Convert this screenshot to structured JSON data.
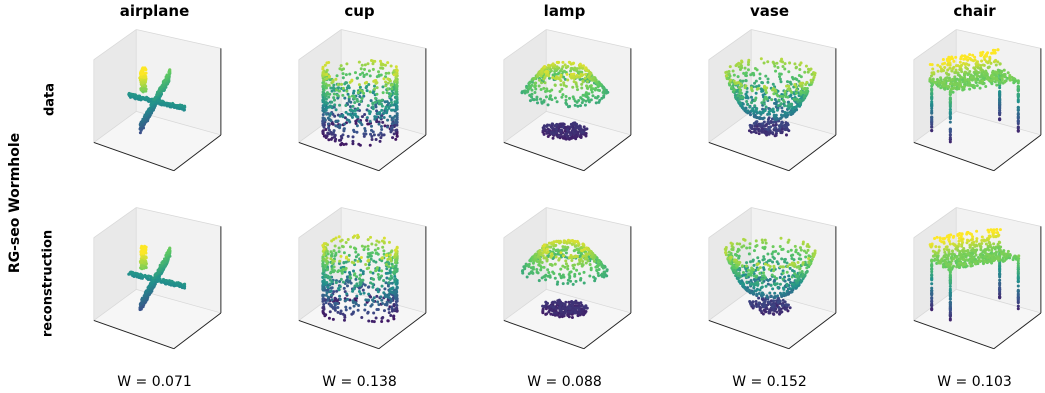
{
  "figure": {
    "side_label": "RG-seo Wormhole",
    "row_labels": [
      "data",
      "reconstruction"
    ],
    "columns": [
      {
        "title": "airplane",
        "score": "W = 0.071",
        "shape": "airplane"
      },
      {
        "title": "cup",
        "score": "W = 0.138",
        "shape": "cup"
      },
      {
        "title": "lamp",
        "score": "W = 0.088",
        "shape": "lamp"
      },
      {
        "title": "vase",
        "score": "W = 0.152",
        "shape": "vase"
      },
      {
        "title": "chair",
        "score": "W = 0.103",
        "shape": "chair"
      }
    ],
    "colormap": [
      "#440154",
      "#3b528b",
      "#21918c",
      "#5ec962",
      "#fde725"
    ]
  }
}
